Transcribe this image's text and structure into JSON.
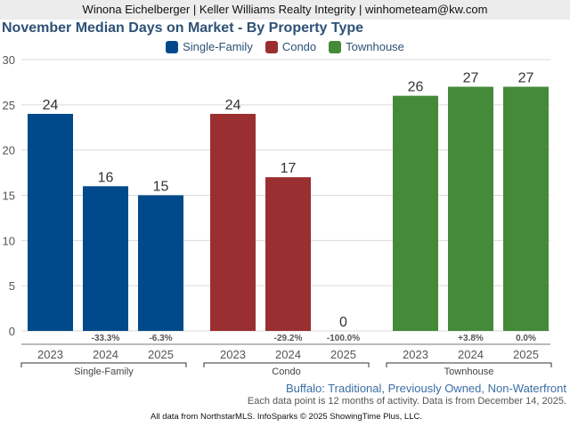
{
  "header": {
    "agent_line": "Winona Eichelberger | Keller Williams Realty Integrity | winhometeam@kw.com"
  },
  "footer": {
    "subtitle": "Buffalo: Traditional, Previously Owned, Non-Waterfront",
    "note": "Each data point is 12 months of activity. Data is from December 14, 2025.",
    "credit": "All data from NorthstarMLS. InfoSparks © 2025 ShowingTime Plus, LLC."
  },
  "chart_data": {
    "type": "bar",
    "title": "November Median Days on Market - By Property Type",
    "xlabel": "",
    "ylabel": "",
    "ylim": [
      0,
      30
    ],
    "yticks": [
      0,
      5,
      10,
      15,
      20,
      25,
      30
    ],
    "grid": true,
    "legend_position": "top-center",
    "categories": [
      "2023",
      "2024",
      "2025"
    ],
    "series": [
      {
        "name": "Single-Family",
        "color": "#004a8b",
        "values": [
          24,
          16,
          15
        ],
        "value_labels": [
          "24",
          "16",
          "15"
        ],
        "change_labels": [
          "",
          "-33.3%",
          "-6.3%"
        ]
      },
      {
        "name": "Condo",
        "color": "#9a2f31",
        "values": [
          24,
          17,
          0
        ],
        "value_labels": [
          "24",
          "17",
          "0"
        ],
        "change_labels": [
          "",
          "-29.2%",
          "-100.0%"
        ]
      },
      {
        "name": "Townhouse",
        "color": "#448a38",
        "values": [
          26,
          27,
          27
        ],
        "value_labels": [
          "26",
          "27",
          "27"
        ],
        "change_labels": [
          "",
          "+3.8%",
          "0.0%"
        ]
      }
    ]
  }
}
